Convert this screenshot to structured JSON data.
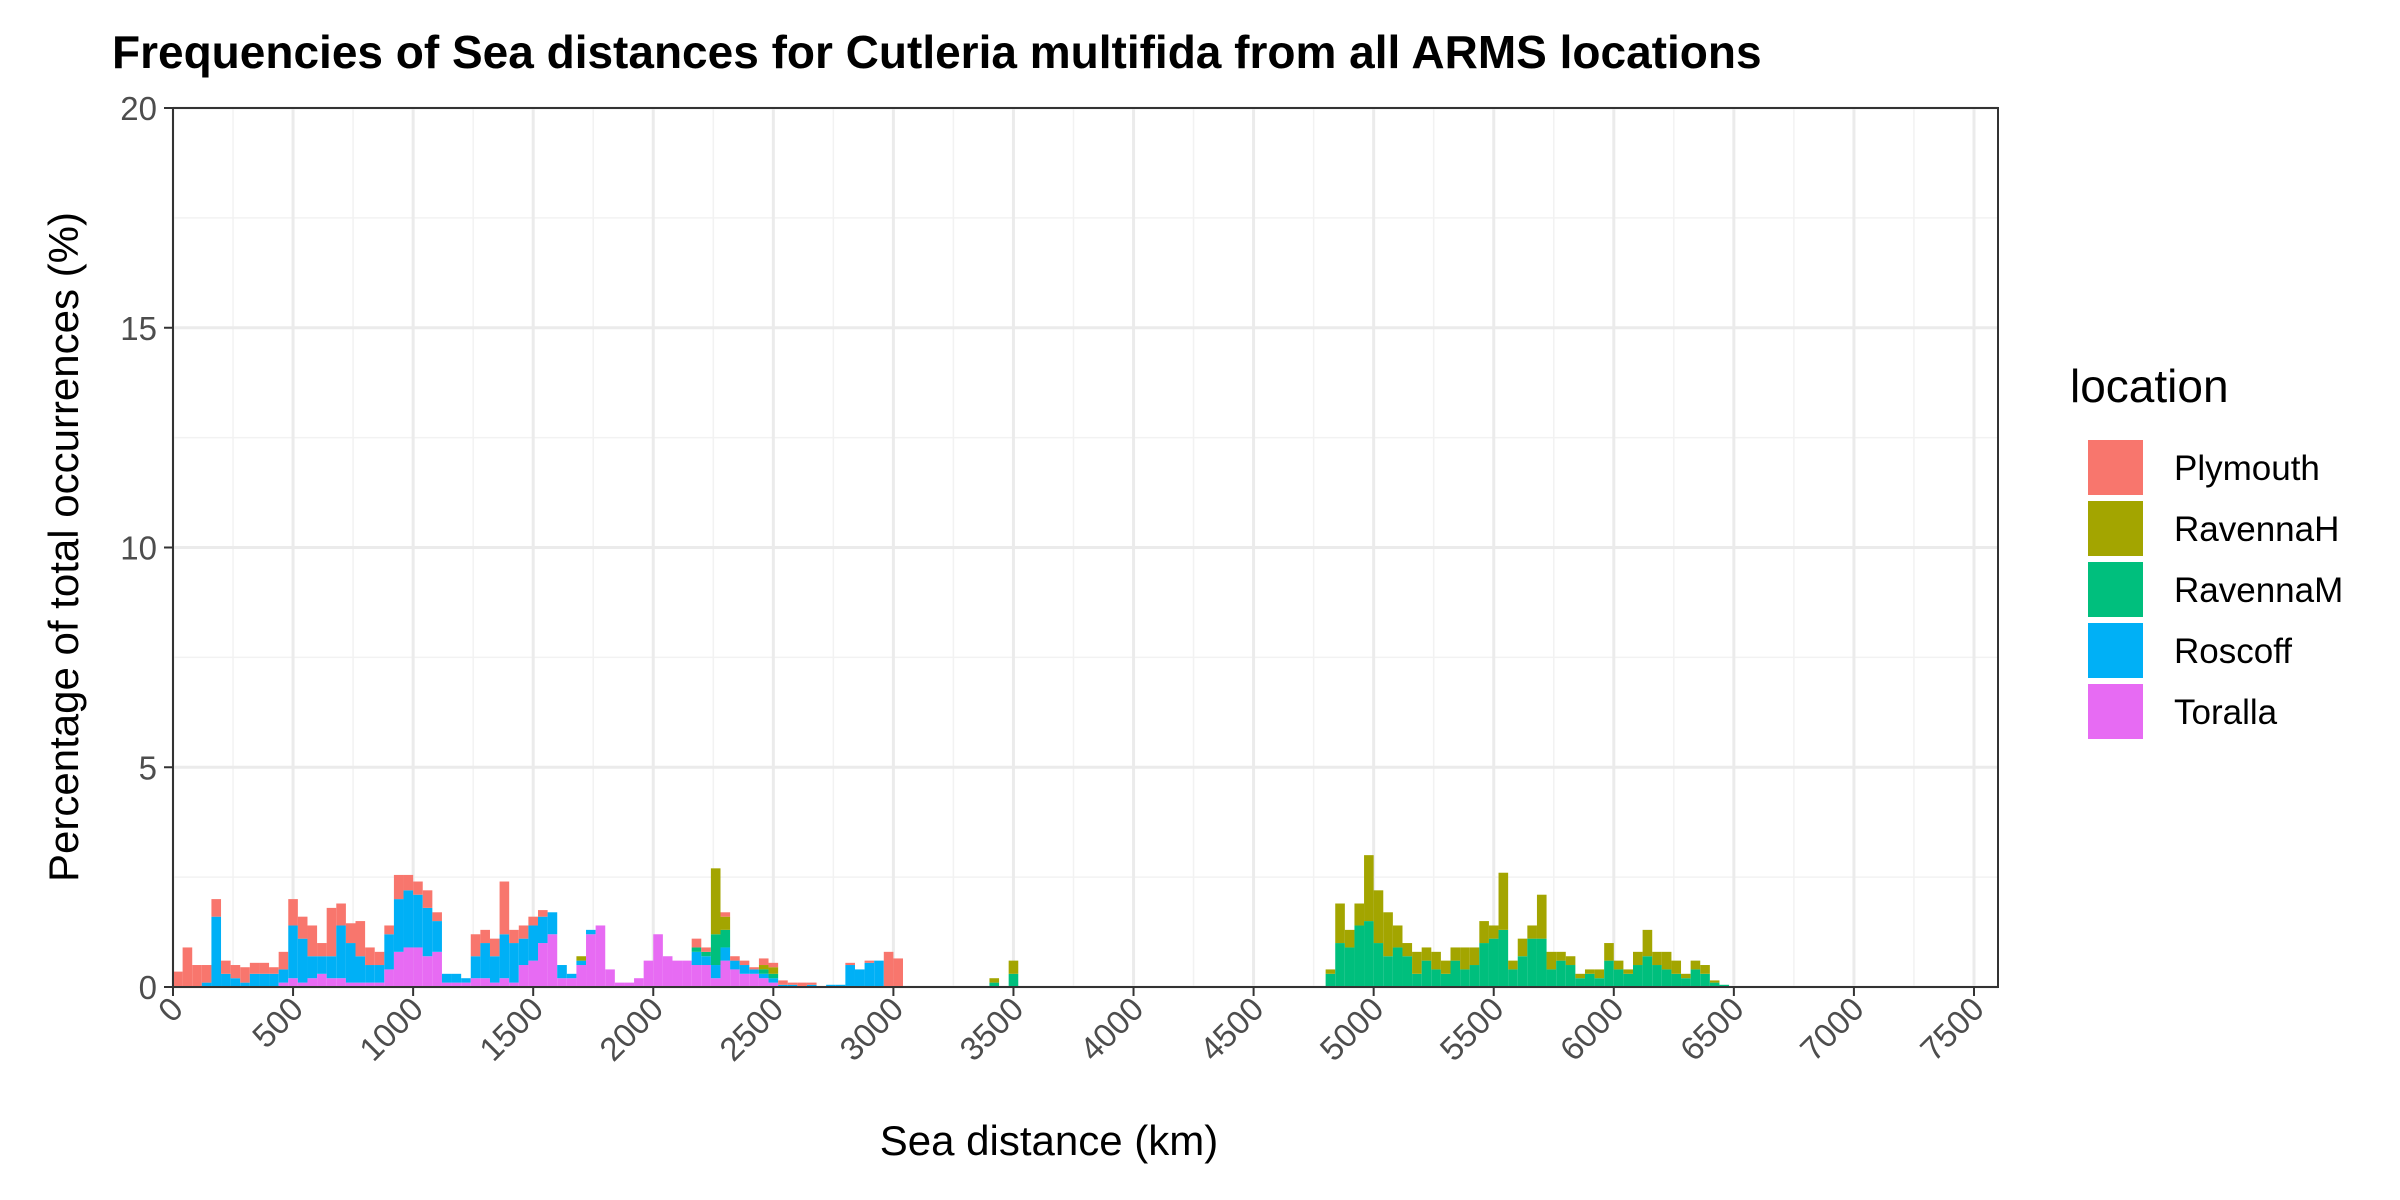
{
  "chart_data": {
    "type": "bar",
    "title": "Frequencies of Sea distances for Cutleria multifida from all ARMS locations",
    "xlabel": "Sea distance (km)",
    "ylabel": "Percentage of total occurrences (%)",
    "xlim": [
      0,
      7600
    ],
    "ylim": [
      0,
      20
    ],
    "x_ticks": [
      0,
      500,
      1000,
      1500,
      2000,
      2500,
      3000,
      3500,
      4000,
      4500,
      5000,
      5500,
      6000,
      6500,
      7000,
      7500
    ],
    "x_tick_labels": [
      "0",
      "500",
      "1000",
      "1500",
      "2000",
      "2500",
      "3000",
      "3500",
      "4000",
      "4500",
      "5000",
      "5500",
      "6000",
      "6500",
      "7000",
      "7500"
    ],
    "y_ticks": [
      0,
      5,
      10,
      15,
      20
    ],
    "y_tick_labels": [
      "0",
      "5",
      "10",
      "15",
      "20"
    ],
    "bin_width_km": 40,
    "stacked": true,
    "grid": true,
    "legend_title": "location",
    "legend_position": "right",
    "series": [
      {
        "name": "Plymouth",
        "color": "#F8766D",
        "points": [
          [
            20,
            0.35
          ],
          [
            60,
            0.9
          ],
          [
            100,
            0.5
          ],
          [
            140,
            0.4
          ],
          [
            180,
            0.4
          ],
          [
            220,
            0.3
          ],
          [
            260,
            0.3
          ],
          [
            300,
            0.35
          ],
          [
            340,
            0.25
          ],
          [
            380,
            0.25
          ],
          [
            420,
            0.15
          ],
          [
            460,
            0.4
          ],
          [
            500,
            0.6
          ],
          [
            540,
            0.5
          ],
          [
            580,
            0.7
          ],
          [
            620,
            0.3
          ],
          [
            660,
            1.1
          ],
          [
            700,
            0.5
          ],
          [
            740,
            0.45
          ],
          [
            780,
            0.8
          ],
          [
            820,
            0.4
          ],
          [
            860,
            0.3
          ],
          [
            900,
            0.2
          ],
          [
            940,
            0.55
          ],
          [
            980,
            0.35
          ],
          [
            1020,
            0.3
          ],
          [
            1060,
            0.4
          ],
          [
            1100,
            0.2
          ],
          [
            1260,
            0.5
          ],
          [
            1300,
            0.3
          ],
          [
            1340,
            0.4
          ],
          [
            1380,
            1.2
          ],
          [
            1420,
            0.3
          ],
          [
            1460,
            0.3
          ],
          [
            1500,
            0.2
          ],
          [
            1540,
            0.15
          ],
          [
            2180,
            0.2
          ],
          [
            2220,
            0.1
          ],
          [
            2300,
            0.1
          ],
          [
            2340,
            0.1
          ],
          [
            2380,
            0.1
          ],
          [
            2420,
            0.05
          ],
          [
            2460,
            0.15
          ],
          [
            2500,
            0.1
          ],
          [
            2540,
            0.1
          ],
          [
            2580,
            0.05
          ],
          [
            2620,
            0.1
          ],
          [
            2660,
            0.05
          ],
          [
            2820,
            0.05
          ],
          [
            2900,
            0.05
          ],
          [
            2980,
            0.8
          ],
          [
            3020,
            0.65
          ]
        ]
      },
      {
        "name": "RavennaH",
        "color": "#A3A500",
        "points": [
          [
            1700,
            0.1
          ],
          [
            2260,
            1.5
          ],
          [
            2300,
            0.3
          ],
          [
            2460,
            0.1
          ],
          [
            2500,
            0.15
          ],
          [
            3420,
            0.1
          ],
          [
            3500,
            0.3
          ],
          [
            4820,
            0.1
          ],
          [
            4860,
            0.9
          ],
          [
            4900,
            0.4
          ],
          [
            4940,
            0.5
          ],
          [
            4980,
            1.5
          ],
          [
            5020,
            1.2
          ],
          [
            5060,
            1.0
          ],
          [
            5100,
            0.5
          ],
          [
            5140,
            0.3
          ],
          [
            5180,
            0.5
          ],
          [
            5220,
            0.3
          ],
          [
            5260,
            0.4
          ],
          [
            5300,
            0.3
          ],
          [
            5340,
            0.3
          ],
          [
            5380,
            0.5
          ],
          [
            5420,
            0.4
          ],
          [
            5460,
            0.5
          ],
          [
            5500,
            0.3
          ],
          [
            5540,
            1.3
          ],
          [
            5580,
            0.2
          ],
          [
            5620,
            0.4
          ],
          [
            5660,
            0.3
          ],
          [
            5700,
            1.0
          ],
          [
            5740,
            0.4
          ],
          [
            5780,
            0.2
          ],
          [
            5820,
            0.2
          ],
          [
            5860,
            0.1
          ],
          [
            5900,
            0.1
          ],
          [
            5940,
            0.2
          ],
          [
            5980,
            0.4
          ],
          [
            6020,
            0.2
          ],
          [
            6060,
            0.1
          ],
          [
            6100,
            0.3
          ],
          [
            6140,
            0.6
          ],
          [
            6180,
            0.3
          ],
          [
            6220,
            0.4
          ],
          [
            6260,
            0.3
          ],
          [
            6300,
            0.1
          ],
          [
            6340,
            0.2
          ],
          [
            6380,
            0.2
          ],
          [
            6420,
            0.05
          ]
        ]
      },
      {
        "name": "RavennaM",
        "color": "#00BF7D",
        "points": [
          [
            2180,
            0.1
          ],
          [
            2220,
            0.1
          ],
          [
            2260,
            0.7
          ],
          [
            2300,
            0.4
          ],
          [
            2460,
            0.1
          ],
          [
            2500,
            0.1
          ],
          [
            3420,
            0.1
          ],
          [
            3500,
            0.3
          ],
          [
            4820,
            0.3
          ],
          [
            4860,
            1.0
          ],
          [
            4900,
            0.9
          ],
          [
            4940,
            1.4
          ],
          [
            4980,
            1.5
          ],
          [
            5020,
            1.0
          ],
          [
            5060,
            0.7
          ],
          [
            5100,
            0.9
          ],
          [
            5140,
            0.7
          ],
          [
            5180,
            0.3
          ],
          [
            5220,
            0.6
          ],
          [
            5260,
            0.4
          ],
          [
            5300,
            0.3
          ],
          [
            5340,
            0.6
          ],
          [
            5380,
            0.4
          ],
          [
            5420,
            0.5
          ],
          [
            5460,
            1.0
          ],
          [
            5500,
            1.1
          ],
          [
            5540,
            1.3
          ],
          [
            5580,
            0.4
          ],
          [
            5620,
            0.7
          ],
          [
            5660,
            1.1
          ],
          [
            5700,
            1.1
          ],
          [
            5740,
            0.4
          ],
          [
            5780,
            0.6
          ],
          [
            5820,
            0.5
          ],
          [
            5860,
            0.2
          ],
          [
            5900,
            0.3
          ],
          [
            5940,
            0.2
          ],
          [
            5980,
            0.6
          ],
          [
            6020,
            0.4
          ],
          [
            6060,
            0.3
          ],
          [
            6100,
            0.5
          ],
          [
            6140,
            0.7
          ],
          [
            6180,
            0.5
          ],
          [
            6220,
            0.4
          ],
          [
            6260,
            0.3
          ],
          [
            6300,
            0.2
          ],
          [
            6340,
            0.4
          ],
          [
            6380,
            0.3
          ],
          [
            6420,
            0.1
          ],
          [
            6460,
            0.05
          ]
        ]
      },
      {
        "name": "Roscoff",
        "color": "#00B0F6",
        "points": [
          [
            140,
            0.1
          ],
          [
            180,
            1.6
          ],
          [
            220,
            0.3
          ],
          [
            260,
            0.2
          ],
          [
            300,
            0.1
          ],
          [
            340,
            0.3
          ],
          [
            380,
            0.3
          ],
          [
            420,
            0.3
          ],
          [
            460,
            0.3
          ],
          [
            500,
            1.2
          ],
          [
            540,
            1.0
          ],
          [
            580,
            0.5
          ],
          [
            620,
            0.4
          ],
          [
            660,
            0.5
          ],
          [
            700,
            1.2
          ],
          [
            740,
            0.9
          ],
          [
            780,
            0.6
          ],
          [
            820,
            0.4
          ],
          [
            860,
            0.4
          ],
          [
            900,
            0.8
          ],
          [
            940,
            1.2
          ],
          [
            980,
            1.3
          ],
          [
            1020,
            1.2
          ],
          [
            1060,
            1.1
          ],
          [
            1100,
            0.7
          ],
          [
            1140,
            0.2
          ],
          [
            1180,
            0.2
          ],
          [
            1220,
            0.1
          ],
          [
            1260,
            0.5
          ],
          [
            1300,
            0.8
          ],
          [
            1340,
            0.6
          ],
          [
            1380,
            1.0
          ],
          [
            1420,
            0.9
          ],
          [
            1460,
            0.6
          ],
          [
            1500,
            0.8
          ],
          [
            1540,
            0.6
          ],
          [
            1580,
            0.5
          ],
          [
            1620,
            0.3
          ],
          [
            1660,
            0.1
          ],
          [
            1700,
            0.1
          ],
          [
            1740,
            0.1
          ],
          [
            2180,
            0.3
          ],
          [
            2220,
            0.2
          ],
          [
            2260,
            0.3
          ],
          [
            2300,
            0.3
          ],
          [
            2340,
            0.2
          ],
          [
            2380,
            0.2
          ],
          [
            2420,
            0.1
          ],
          [
            2460,
            0.1
          ],
          [
            2500,
            0.1
          ],
          [
            2540,
            0.05
          ],
          [
            2580,
            0.05
          ],
          [
            2660,
            0.05
          ],
          [
            2740,
            0.05
          ],
          [
            2780,
            0.05
          ],
          [
            2820,
            0.5
          ],
          [
            2860,
            0.4
          ],
          [
            2900,
            0.55
          ],
          [
            2940,
            0.6
          ]
        ]
      },
      {
        "name": "Toralla",
        "color": "#E76BF3",
        "points": [
          [
            460,
            0.1
          ],
          [
            500,
            0.2
          ],
          [
            540,
            0.1
          ],
          [
            580,
            0.2
          ],
          [
            620,
            0.3
          ],
          [
            660,
            0.2
          ],
          [
            700,
            0.2
          ],
          [
            740,
            0.1
          ],
          [
            780,
            0.1
          ],
          [
            820,
            0.1
          ],
          [
            860,
            0.1
          ],
          [
            900,
            0.4
          ],
          [
            940,
            0.8
          ],
          [
            980,
            0.9
          ],
          [
            1020,
            0.9
          ],
          [
            1060,
            0.7
          ],
          [
            1100,
            0.8
          ],
          [
            1140,
            0.1
          ],
          [
            1180,
            0.1
          ],
          [
            1220,
            0.1
          ],
          [
            1260,
            0.2
          ],
          [
            1300,
            0.2
          ],
          [
            1340,
            0.1
          ],
          [
            1380,
            0.2
          ],
          [
            1420,
            0.1
          ],
          [
            1460,
            0.5
          ],
          [
            1500,
            0.6
          ],
          [
            1540,
            1.0
          ],
          [
            1580,
            1.2
          ],
          [
            1620,
            0.2
          ],
          [
            1660,
            0.2
          ],
          [
            1700,
            0.5
          ],
          [
            1740,
            1.2
          ],
          [
            1780,
            1.4
          ],
          [
            1820,
            0.4
          ],
          [
            1860,
            0.1
          ],
          [
            1900,
            0.1
          ],
          [
            1940,
            0.2
          ],
          [
            1980,
            0.6
          ],
          [
            2020,
            1.2
          ],
          [
            2060,
            0.7
          ],
          [
            2100,
            0.6
          ],
          [
            2140,
            0.6
          ],
          [
            2180,
            0.5
          ],
          [
            2220,
            0.5
          ],
          [
            2260,
            0.2
          ],
          [
            2300,
            0.6
          ],
          [
            2340,
            0.4
          ],
          [
            2380,
            0.3
          ],
          [
            2420,
            0.3
          ],
          [
            2460,
            0.2
          ],
          [
            2500,
            0.1
          ]
        ]
      }
    ]
  }
}
